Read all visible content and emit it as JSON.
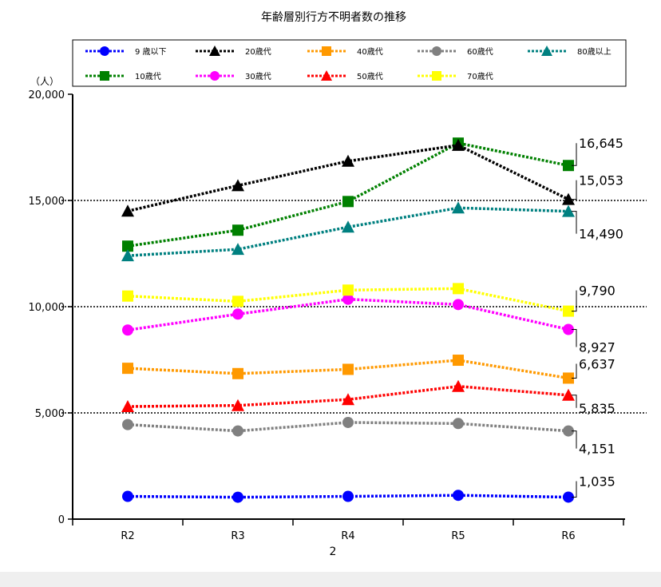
{
  "chart_data": {
    "type": "line",
    "title": "年齢層別行方不明者数の推移",
    "ylabel": "（人）",
    "page_number": "2",
    "categories": [
      "R2",
      "R3",
      "R4",
      "R5",
      "R6"
    ],
    "ylim": [
      0,
      20000
    ],
    "yticks": [
      0,
      5000,
      10000,
      15000,
      20000
    ],
    "ytick_labels": [
      "0",
      "5,000",
      "10,000",
      "15,000",
      "20,000"
    ],
    "grid": "horizontal dotted at 5,000 / 10,000 / 15,000",
    "legend_position": "top",
    "series": [
      {
        "name": "9 歳以下",
        "color": "#0000ff",
        "marker": "circle",
        "values": [
          1070,
          1030,
          1070,
          1120,
          1035
        ],
        "end_label": "1,035"
      },
      {
        "name": "10歳代",
        "color": "#008000",
        "marker": "square",
        "values": [
          12850,
          13600,
          14950,
          17700,
          16645
        ],
        "end_label": "16,645"
      },
      {
        "name": "20歳代",
        "color": "#000000",
        "marker": "triangle",
        "values": [
          14500,
          15700,
          16850,
          17600,
          15053
        ],
        "end_label": "15,053"
      },
      {
        "name": "30歳代",
        "color": "#ff00ff",
        "marker": "circle",
        "values": [
          8900,
          9650,
          10350,
          10100,
          8927
        ],
        "end_label": "8,927"
      },
      {
        "name": "40歳代",
        "color": "#ff9900",
        "marker": "square",
        "values": [
          7100,
          6850,
          7050,
          7480,
          6637
        ],
        "end_label": "6,637"
      },
      {
        "name": "50歳代",
        "color": "#ff0000",
        "marker": "triangle",
        "values": [
          5300,
          5350,
          5630,
          6250,
          5835
        ],
        "end_label": "5,835"
      },
      {
        "name": "60歳代",
        "color": "#808080",
        "marker": "circle",
        "values": [
          4450,
          4150,
          4550,
          4500,
          4151
        ],
        "end_label": "4,151"
      },
      {
        "name": "70歳代",
        "color": "#ffff00",
        "marker": "square",
        "values": [
          10500,
          10250,
          10780,
          10850,
          9790
        ],
        "end_label": "9,790"
      },
      {
        "name": "80歳以上",
        "color": "#008080",
        "marker": "triangle",
        "values": [
          12400,
          12700,
          13750,
          14650,
          14490
        ],
        "end_label": "14,490"
      }
    ]
  }
}
